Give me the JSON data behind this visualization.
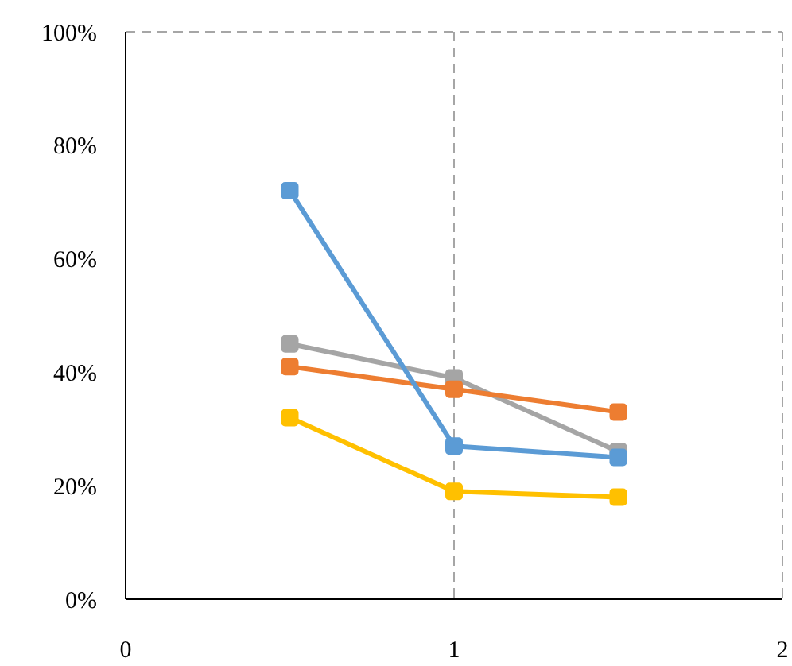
{
  "chart_data": {
    "type": "line",
    "x": [
      0.5,
      1,
      1.5
    ],
    "series": [
      {
        "color": "#5b9bd5",
        "values": [
          72,
          27,
          25
        ]
      },
      {
        "color": "#ed7d31",
        "values": [
          41,
          37,
          33
        ]
      },
      {
        "color": "#a5a5a5",
        "values": [
          45,
          39,
          26
        ]
      },
      {
        "color": "#ffc000",
        "values": [
          32,
          19,
          18
        ]
      }
    ],
    "xlim": [
      0,
      2
    ],
    "xticks": [
      0,
      1,
      2
    ],
    "ylim": [
      0,
      100
    ],
    "yticks": [
      {
        "value": 0,
        "label": "0%"
      },
      {
        "value": 20,
        "label": "20%"
      },
      {
        "value": 40,
        "label": "40%"
      },
      {
        "value": 60,
        "label": "60%"
      },
      {
        "value": 80,
        "label": "80%"
      },
      {
        "value": 100,
        "label": "100%"
      }
    ],
    "grid": true,
    "marker": "square",
    "legend": false
  }
}
